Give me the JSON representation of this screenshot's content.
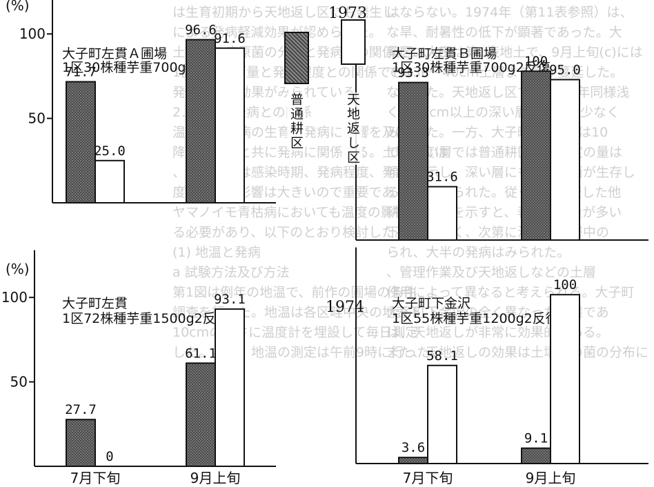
{
  "background_text": [
    "はならない。1974年（第11表参照）は、",
    "な旱、耐暑性の低下が顕著であった。大",
    "薬区、大田は第1表地土で、9月上旬(c)には",
    "では30〜40cm土層まで菌が蔓延した。",
    "なかった。天地返し区では1971年同様浅",
    "く、20cm以上の深い層では菌が少なく",
    "みられた。一方、大子町第2表では10",
    "での深い層では普通耕区でも一定の量は",
    "傾向を示し、深い層にも多量の菌が生存し",
    "るものとみられた。従って、比較した他",
    "耕起的要因を示すと、表層に菌量が多い",
    "下層は少なく、次第に深く土壌層中の",
    "られ、大半の発病はみられた。",
    "、管理作業及び天地返しなどの土層",
    "作用によって異なると考えられる。大子町",
    "大子町下金沢の全く異なった土壌であ",
    "は、天地返しが非常に効果的である。",
    "また、天地返しの効果は土壌中の菌の分布に",
    "は生育初期から天地返し区にも発生し、",
    "による発病軽減効果が認められた。",
    "土壌中の病原菌の分布と発病との関係について、",
    "1区画当り菌量と発病程度との関係でも",
    "発病の軽減効果がみられている。",
    "2．温度と発病との関係",
    "温度は青枯病の生育と発病に影響を及ぼし、",
    "降雨量などと共に発病に関係する。土壌温度は",
    "、特に地温は感染時期、発病程度、発病",
    "度に与える影響は大きいので重要である。",
    "ヤマノイモ青枯病においても温度の影響が",
    "る必要があり、以下のとおり検討した。",
    "(1) 地温と発病",
    "a 試験方法及び方法",
    "第1図は例年の地温で、前作の圃場の条件",
    "調査を行った。地温は各区畦中央の地表下",
    "10cmの深さに温度計を埋設して毎日測定",
    "した。なお、地温の測定は午前9時に行った。"
  ],
  "legend": {
    "normal": "普通耕区",
    "tenchi": "天地返し区"
  },
  "colors": {
    "normal_fill": "#555555",
    "tenchi_fill": "#ffffff",
    "ink": "#111111"
  },
  "chart_data": [
    {
      "type": "bar",
      "year": "1973",
      "title_line1": "大子町左貫Ａ圃場",
      "title_line2": "1区30株種芋重700g2反復",
      "ylabel": "(%)",
      "yticks": [
        50,
        100
      ],
      "ylim": [
        0,
        120
      ],
      "categories": [
        "",
        ""
      ],
      "series": [
        {
          "name": "普通耕区",
          "values": [
            71.7,
            96.6
          ]
        },
        {
          "name": "天地返し区",
          "values": [
            25.0,
            91.6
          ]
        }
      ],
      "labels": [
        "71.7",
        "96.6",
        "25.0",
        "91.6"
      ]
    },
    {
      "type": "bar",
      "year": "",
      "title_line1": "大子町左貫Ｂ圃場",
      "title_line2": "1区30株種芋重700g2反復",
      "ylabel": "",
      "yticks": [],
      "ylim": [
        0,
        120
      ],
      "categories": [
        "",
        ""
      ],
      "series": [
        {
          "name": "普通耕区",
          "values": [
            93.3,
            100
          ]
        },
        {
          "name": "天地返し区",
          "values": [
            31.6,
            95.0
          ]
        }
      ],
      "labels": [
        "93.3",
        "100",
        "31.6",
        "95.0"
      ]
    },
    {
      "type": "bar",
      "year": "1974",
      "title_line1": "大子町左貫",
      "title_line2": "1区72株種芋重1500g2反復",
      "ylabel": "(%)",
      "yticks": [
        50,
        100
      ],
      "ylim": [
        0,
        120
      ],
      "categories": [
        "7月下旬",
        "9月上旬"
      ],
      "series": [
        {
          "name": "普通耕区",
          "values": [
            27.7,
            61.1
          ]
        },
        {
          "name": "天地返し区",
          "values": [
            0,
            93.1
          ]
        }
      ],
      "labels": [
        "27.7",
        "61.1",
        "0",
        "93.1"
      ]
    },
    {
      "type": "bar",
      "year": "",
      "title_line1": "大子町下金沢",
      "title_line2": "1区55株種芋重1200g2反復",
      "ylabel": "",
      "yticks": [],
      "ylim": [
        0,
        120
      ],
      "categories": [
        "7月下旬",
        "9月上旬"
      ],
      "series": [
        {
          "name": "普通耕区",
          "values": [
            3.6,
            9.1
          ]
        },
        {
          "name": "天地返し区",
          "values": [
            58.1,
            100
          ]
        }
      ],
      "labels": [
        "3.6",
        "9.1",
        "58.1",
        "100"
      ]
    }
  ]
}
